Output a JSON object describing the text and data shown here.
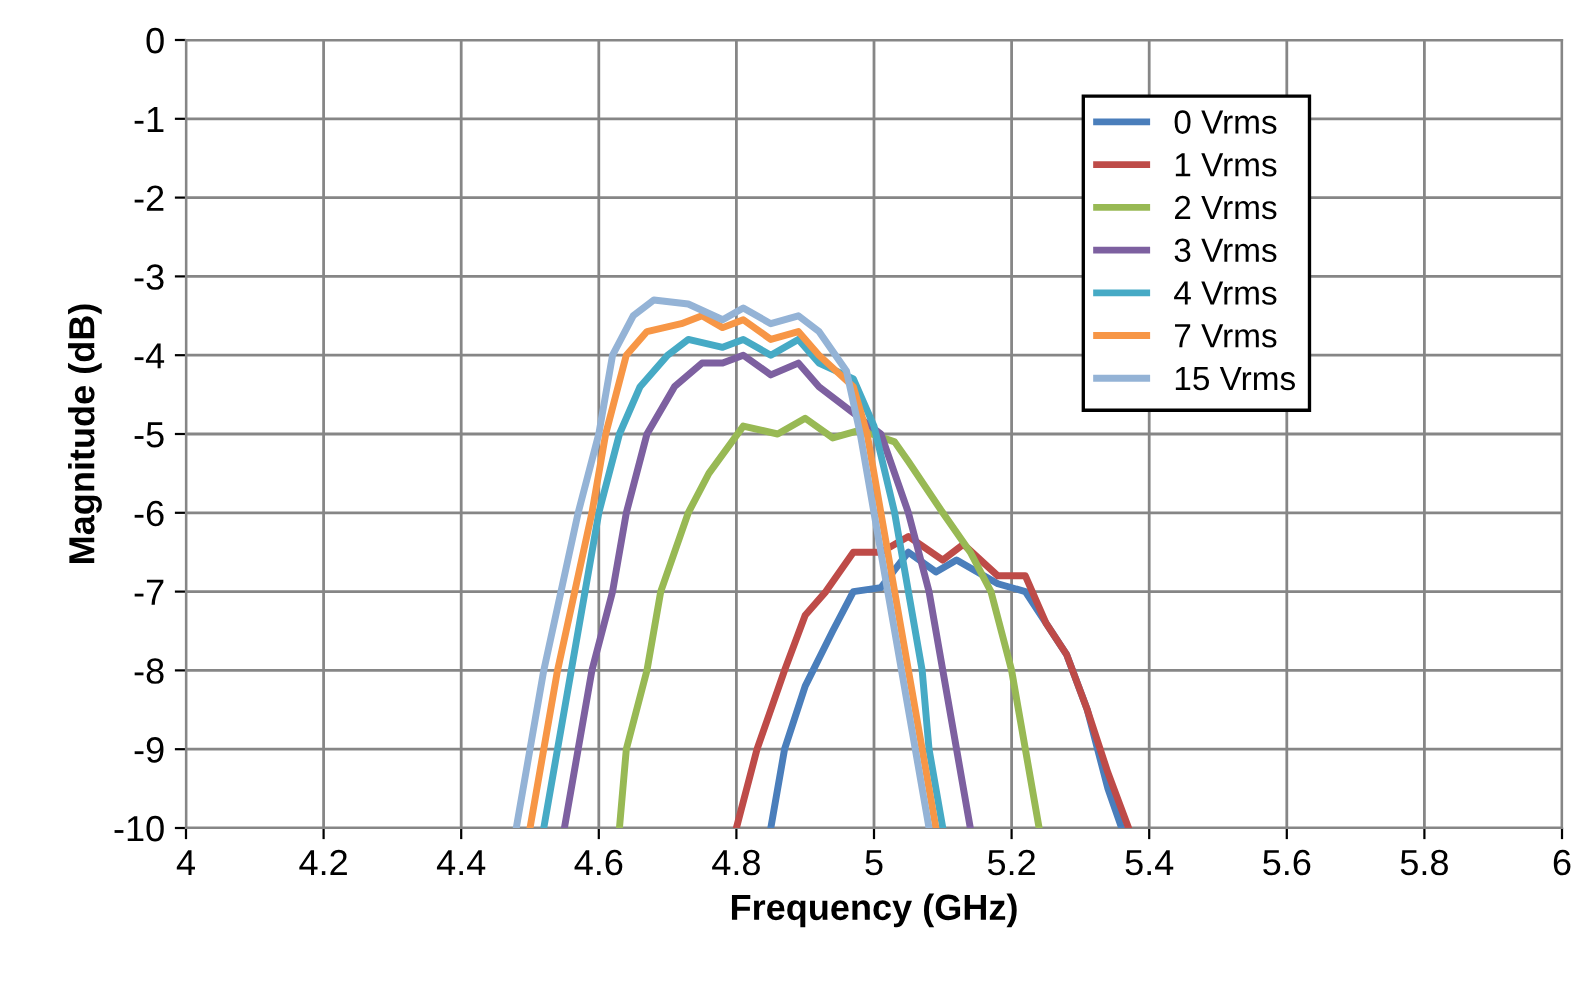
{
  "chart_data": {
    "type": "line",
    "xlabel": "Frequency (GHz)",
    "ylabel": "Magnitude (dB)",
    "xlim": [
      4,
      6
    ],
    "ylim": [
      -10,
      0
    ],
    "xticks": [
      4,
      4.2,
      4.4,
      4.6,
      4.8,
      5,
      5.2,
      5.4,
      5.6,
      5.8,
      6
    ],
    "yticks": [
      0,
      -1,
      -2,
      -3,
      -4,
      -5,
      -6,
      -7,
      -8,
      -9,
      -10
    ],
    "grid": true,
    "legend": "top right",
    "marker": "none",
    "line_style": "solid",
    "series": [
      {
        "name": "0 Vrms",
        "color": "#4a7ebb",
        "x": [
          4.85,
          4.87,
          4.9,
          4.94,
          4.97,
          5.01,
          5.05,
          5.09,
          5.12,
          5.18,
          5.22,
          5.25,
          5.28,
          5.31,
          5.34,
          5.36
        ],
        "values": [
          -10,
          -9,
          -8.2,
          -7.5,
          -7,
          -6.95,
          -6.5,
          -6.75,
          -6.6,
          -6.9,
          -7,
          -7.4,
          -7.8,
          -8.5,
          -9.5,
          -10
        ]
      },
      {
        "name": "1 Vrms",
        "color": "#be4b48",
        "x": [
          4.8,
          4.83,
          4.87,
          4.9,
          4.93,
          4.97,
          5.01,
          5.05,
          5.1,
          5.13,
          5.18,
          5.22,
          5.25,
          5.28,
          5.31,
          5.34,
          5.37
        ],
        "values": [
          -10,
          -9,
          -8,
          -7.3,
          -7,
          -6.5,
          -6.5,
          -6.3,
          -6.6,
          -6.4,
          -6.8,
          -6.8,
          -7.4,
          -7.8,
          -8.5,
          -9.3,
          -10
        ]
      },
      {
        "name": "2 Vrms",
        "color": "#98b954",
        "x": [
          4.63,
          4.64,
          4.67,
          4.69,
          4.73,
          4.76,
          4.81,
          4.86,
          4.9,
          4.94,
          4.98,
          5.03,
          5.05,
          5.1,
          5.14,
          5.17,
          5.2,
          5.22,
          5.24
        ],
        "values": [
          -10,
          -9,
          -8,
          -7,
          -6,
          -5.5,
          -4.9,
          -5.0,
          -4.8,
          -5.05,
          -4.95,
          -5.1,
          -5.35,
          -6,
          -6.5,
          -7,
          -8,
          -9,
          -10
        ]
      },
      {
        "name": "3 Vrms",
        "color": "#7d60a0",
        "x": [
          4.55,
          4.57,
          4.59,
          4.62,
          4.64,
          4.67,
          4.71,
          4.75,
          4.78,
          4.81,
          4.85,
          4.89,
          4.92,
          4.95,
          5.01,
          5.05,
          5.08,
          5.1,
          5.12,
          5.14
        ],
        "values": [
          -10,
          -9,
          -8,
          -7,
          -6,
          -5,
          -4.4,
          -4.1,
          -4.1,
          -4.0,
          -4.25,
          -4.1,
          -4.4,
          -4.6,
          -5,
          -6,
          -7,
          -8,
          -9,
          -10
        ]
      },
      {
        "name": "4 Vrms",
        "color": "#46aac5",
        "x": [
          4.52,
          4.56,
          4.6,
          4.63,
          4.66,
          4.7,
          4.73,
          4.78,
          4.81,
          4.85,
          4.89,
          4.92,
          4.97,
          5.0,
          5.03,
          5.05,
          5.07,
          5.08,
          5.1
        ],
        "values": [
          -10,
          -8,
          -6,
          -5,
          -4.4,
          -4,
          -3.8,
          -3.9,
          -3.8,
          -4,
          -3.8,
          -4.1,
          -4.3,
          -4.9,
          -6,
          -7,
          -8,
          -9,
          -10
        ]
      },
      {
        "name": "7 Vrms",
        "color": "#f79646",
        "x": [
          4.5,
          4.54,
          4.59,
          4.61,
          4.64,
          4.67,
          4.72,
          4.75,
          4.78,
          4.81,
          4.85,
          4.89,
          4.92,
          4.97,
          4.99,
          5.01,
          5.03,
          5.05,
          5.07,
          5.09
        ],
        "values": [
          -10,
          -8,
          -6,
          -5,
          -4,
          -3.7,
          -3.6,
          -3.5,
          -3.65,
          -3.55,
          -3.8,
          -3.7,
          -4,
          -4.4,
          -5,
          -6,
          -7,
          -8,
          -9,
          -10
        ]
      },
      {
        "name": "15 Vrms",
        "color": "#94b3d6",
        "x": [
          4.48,
          4.52,
          4.57,
          4.6,
          4.62,
          4.65,
          4.68,
          4.73,
          4.78,
          4.81,
          4.85,
          4.89,
          4.92,
          4.96,
          4.98,
          5.0,
          5.02,
          5.04,
          5.06,
          5.08
        ],
        "values": [
          -10,
          -8,
          -6,
          -5,
          -4,
          -3.5,
          -3.3,
          -3.35,
          -3.55,
          -3.4,
          -3.6,
          -3.5,
          -3.7,
          -4.2,
          -5,
          -6,
          -7,
          -8,
          -9,
          -10
        ]
      }
    ]
  }
}
